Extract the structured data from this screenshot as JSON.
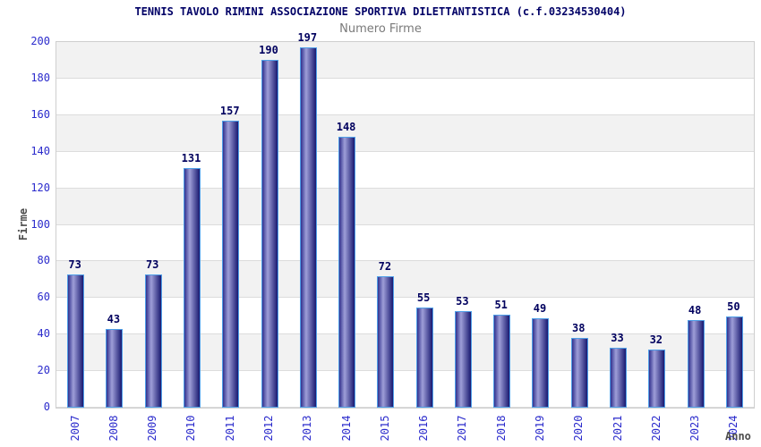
{
  "chart_data": {
    "type": "bar",
    "title": "TENNIS TAVOLO RIMINI ASSOCIAZIONE SPORTIVA DILETTANTISTICA (c.f.03234530404)",
    "subtitle": "Numero Firme",
    "xlabel": "Anno",
    "ylabel": "Firme",
    "categories": [
      "2007",
      "2008",
      "2009",
      "2010",
      "2011",
      "2012",
      "2013",
      "2014",
      "2015",
      "2016",
      "2017",
      "2018",
      "2019",
      "2020",
      "2021",
      "2022",
      "2023",
      "2024"
    ],
    "values": [
      73,
      43,
      73,
      131,
      157,
      190,
      197,
      148,
      72,
      55,
      53,
      51,
      49,
      38,
      33,
      32,
      48,
      50
    ],
    "ylim": [
      0,
      200
    ],
    "ytick_step": 20,
    "grid": true,
    "legend_position": "none",
    "band_pattern": "alternating gray/white every 20 units, gray at top band 180-200",
    "colors": {
      "title_text": "#000066",
      "subtitle_text": "#7a7a7a",
      "tick_label": "#2b2bcc",
      "value_label": "#00005e",
      "axis_title": "#4d4d4d",
      "band_gray": "#f2f2f2",
      "band_white": "#ffffff",
      "gridline": "#dcdcdc",
      "plot_border": "#cfcfcf",
      "bar_border": "#4f9fe8",
      "bar_gradient_left": "#32328e",
      "bar_gradient_light": "#9e9ed8",
      "bar_gradient_right": "#191970"
    }
  }
}
